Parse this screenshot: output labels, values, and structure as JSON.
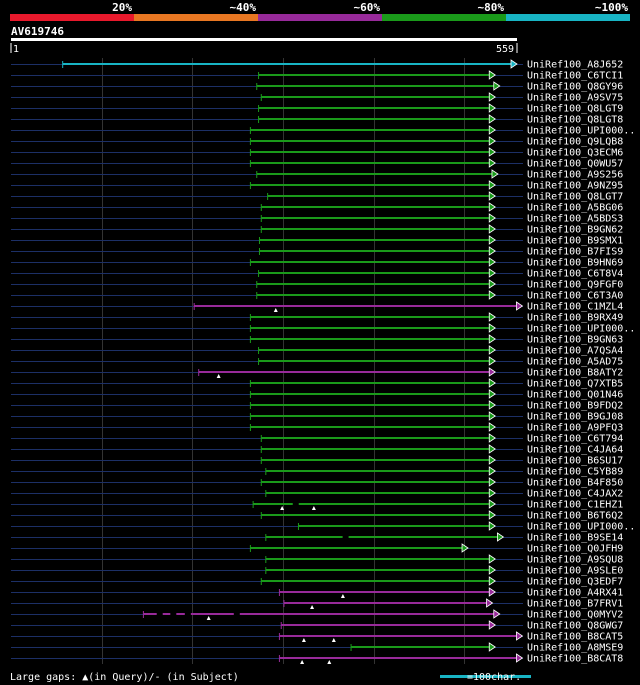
{
  "chart_data": {
    "type": "alignment",
    "query_id": "AV619746",
    "query_start": 1,
    "query_end": 559,
    "identity_legend": [
      {
        "label": "20%",
        "color": "#e8192c"
      },
      {
        "label": "~40%",
        "color": "#e87722"
      },
      {
        "label": "~60%",
        "color": "#982a9a"
      },
      {
        "label": "~80%",
        "color": "#1a9a1a"
      },
      {
        "label": "~100%",
        "color": "#18b4c4"
      }
    ],
    "footer": {
      "gap_note": "Large gaps: ▲(in Query)/- (in Subject)",
      "scale_label": "=100char."
    },
    "scale_chars": 100,
    "hits": [
      {
        "name": "UniRef100_A8J652",
        "start": 58,
        "end": 559,
        "identity": "~100%",
        "gaps": []
      },
      {
        "name": "UniRef100_C6TCI1",
        "start": 274,
        "end": 535,
        "identity": "~80%",
        "gaps": []
      },
      {
        "name": "UniRef100_Q8GY96",
        "start": 272,
        "end": 540,
        "identity": "~80%",
        "gaps": []
      },
      {
        "name": "UniRef100_A9SV75",
        "start": 277,
        "end": 535,
        "identity": "~80%",
        "gaps": []
      },
      {
        "name": "UniRef100_Q8LGT9",
        "start": 274,
        "end": 535,
        "identity": "~80%",
        "gaps": []
      },
      {
        "name": "UniRef100_Q8LGT8",
        "start": 274,
        "end": 535,
        "identity": "~80%",
        "gaps": []
      },
      {
        "name": "UniRef100_UPI000..",
        "start": 265,
        "end": 535,
        "identity": "~80%",
        "gaps": []
      },
      {
        "name": "UniRef100_Q9LQB8",
        "start": 265,
        "end": 535,
        "identity": "~80%",
        "gaps": []
      },
      {
        "name": "UniRef100_Q3ECM6",
        "start": 265,
        "end": 535,
        "identity": "~80%",
        "gaps": []
      },
      {
        "name": "UniRef100_Q0WU57",
        "start": 265,
        "end": 535,
        "identity": "~80%",
        "gaps": []
      },
      {
        "name": "UniRef100_A9S256",
        "start": 272,
        "end": 538,
        "identity": "~80%",
        "gaps": []
      },
      {
        "name": "UniRef100_A9NZ95",
        "start": 265,
        "end": 535,
        "identity": "~80%",
        "gaps": []
      },
      {
        "name": "UniRef100_Q8LGT7",
        "start": 284,
        "end": 535,
        "identity": "~80%",
        "gaps": []
      },
      {
        "name": "UniRef100_A5BG06",
        "start": 277,
        "end": 535,
        "identity": "~80%",
        "gaps": []
      },
      {
        "name": "UniRef100_A5BDS3",
        "start": 277,
        "end": 535,
        "identity": "~80%",
        "gaps": []
      },
      {
        "name": "UniRef100_B9GN62",
        "start": 277,
        "end": 535,
        "identity": "~80%",
        "gaps": []
      },
      {
        "name": "UniRef100_B9SMX1",
        "start": 275,
        "end": 535,
        "identity": "~80%",
        "gaps": []
      },
      {
        "name": "UniRef100_B7FIS9",
        "start": 275,
        "end": 535,
        "identity": "~80%",
        "gaps": []
      },
      {
        "name": "UniRef100_B9HN69",
        "start": 265,
        "end": 535,
        "identity": "~80%",
        "gaps": []
      },
      {
        "name": "UniRef100_C6T8V4",
        "start": 274,
        "end": 535,
        "identity": "~80%",
        "gaps": []
      },
      {
        "name": "UniRef100_Q9FGF0",
        "start": 272,
        "end": 535,
        "identity": "~80%",
        "gaps": []
      },
      {
        "name": "UniRef100_C6T3A0",
        "start": 272,
        "end": 535,
        "identity": "~80%",
        "gaps": []
      },
      {
        "name": "UniRef100_C1MZL4",
        "start": 203,
        "end": 565,
        "identity": "~60%",
        "gaps": [
          {
            "type": "query",
            "pos": 293
          }
        ]
      },
      {
        "name": "UniRef100_B9RX49",
        "start": 265,
        "end": 535,
        "identity": "~80%",
        "gaps": []
      },
      {
        "name": "UniRef100_UPI000..",
        "start": 265,
        "end": 535,
        "identity": "~80%",
        "gaps": []
      },
      {
        "name": "UniRef100_B9GN63",
        "start": 265,
        "end": 535,
        "identity": "~80%",
        "gaps": []
      },
      {
        "name": "UniRef100_A7QSA4",
        "start": 274,
        "end": 535,
        "identity": "~80%",
        "gaps": []
      },
      {
        "name": "UniRef100_A5AD75",
        "start": 274,
        "end": 535,
        "identity": "~80%",
        "gaps": []
      },
      {
        "name": "UniRef100_B8ATY2",
        "start": 208,
        "end": 535,
        "identity": "~60%",
        "gaps": [
          {
            "type": "query",
            "pos": 230
          }
        ]
      },
      {
        "name": "UniRef100_Q7XTB5",
        "start": 265,
        "end": 535,
        "identity": "~80%",
        "gaps": []
      },
      {
        "name": "UniRef100_Q01N46",
        "start": 265,
        "end": 535,
        "identity": "~80%",
        "gaps": []
      },
      {
        "name": "UniRef100_B9FDQ2",
        "start": 265,
        "end": 535,
        "identity": "~80%",
        "gaps": []
      },
      {
        "name": "UniRef100_B9GJ08",
        "start": 265,
        "end": 535,
        "identity": "~80%",
        "gaps": []
      },
      {
        "name": "UniRef100_A9PFQ3",
        "start": 265,
        "end": 535,
        "identity": "~80%",
        "gaps": []
      },
      {
        "name": "UniRef100_C6T794",
        "start": 277,
        "end": 535,
        "identity": "~80%",
        "gaps": []
      },
      {
        "name": "UniRef100_C4JA64",
        "start": 277,
        "end": 535,
        "identity": "~80%",
        "gaps": []
      },
      {
        "name": "UniRef100_B6SU17",
        "start": 277,
        "end": 535,
        "identity": "~80%",
        "gaps": []
      },
      {
        "name": "UniRef100_C5YB89",
        "start": 282,
        "end": 535,
        "identity": "~80%",
        "gaps": []
      },
      {
        "name": "UniRef100_B4F850",
        "start": 277,
        "end": 535,
        "identity": "~80%",
        "gaps": []
      },
      {
        "name": "UniRef100_C4JAX2",
        "start": 282,
        "end": 535,
        "identity": "~80%",
        "gaps": []
      },
      {
        "name": "UniRef100_C1EHZ1",
        "start": 268,
        "end": 535,
        "identity": "~80%",
        "gaps": [
          {
            "type": "query",
            "pos": 300
          },
          {
            "type": "query",
            "pos": 335
          },
          {
            "type": "subject",
            "pos": 315
          }
        ]
      },
      {
        "name": "UniRef100_B6T6Q2",
        "start": 277,
        "end": 535,
        "identity": "~80%",
        "gaps": []
      },
      {
        "name": "UniRef100_UPI000..",
        "start": 318,
        "end": 535,
        "identity": "~80%",
        "gaps": []
      },
      {
        "name": "UniRef100_B9SE14",
        "start": 282,
        "end": 544,
        "identity": "~80%",
        "gaps": [
          {
            "type": "subject",
            "pos": 370
          }
        ]
      },
      {
        "name": "UniRef100_Q0JFH9",
        "start": 265,
        "end": 505,
        "identity": "~80%",
        "gaps": []
      },
      {
        "name": "UniRef100_A9SQU8",
        "start": 282,
        "end": 535,
        "identity": "~80%",
        "gaps": []
      },
      {
        "name": "UniRef100_A9SLE0",
        "start": 282,
        "end": 535,
        "identity": "~80%",
        "gaps": []
      },
      {
        "name": "UniRef100_Q3EDF7",
        "start": 277,
        "end": 535,
        "identity": "~80%",
        "gaps": []
      },
      {
        "name": "UniRef100_A4RX41",
        "start": 297,
        "end": 535,
        "identity": "~60%",
        "gaps": [
          {
            "type": "query",
            "pos": 367
          }
        ]
      },
      {
        "name": "UniRef100_B7FRV1",
        "start": 302,
        "end": 532,
        "identity": "~60%",
        "gaps": [
          {
            "type": "query",
            "pos": 333
          }
        ]
      },
      {
        "name": "UniRef100_Q0MYV2",
        "start": 147,
        "end": 540,
        "identity": "~60%",
        "gaps": [
          {
            "type": "query",
            "pos": 219
          },
          {
            "type": "subject",
            "pos": 165
          },
          {
            "type": "subject",
            "pos": 180
          },
          {
            "type": "subject",
            "pos": 196
          },
          {
            "type": "subject",
            "pos": 250
          }
        ]
      },
      {
        "name": "UniRef100_Q8GWG7",
        "start": 299,
        "end": 535,
        "identity": "~60%",
        "gaps": []
      },
      {
        "name": "UniRef100_B8CAT5",
        "start": 297,
        "end": 565,
        "identity": "~60%",
        "gaps": [
          {
            "type": "query",
            "pos": 324
          },
          {
            "type": "query",
            "pos": 357
          }
        ]
      },
      {
        "name": "UniRef100_A8MSE9",
        "start": 376,
        "end": 535,
        "identity": "~80%",
        "gaps": []
      },
      {
        "name": "UniRef100_B8CAT8",
        "start": 297,
        "end": 565,
        "identity": "~60%",
        "gaps": [
          {
            "type": "query",
            "pos": 322
          },
          {
            "type": "query",
            "pos": 352
          }
        ]
      }
    ]
  }
}
